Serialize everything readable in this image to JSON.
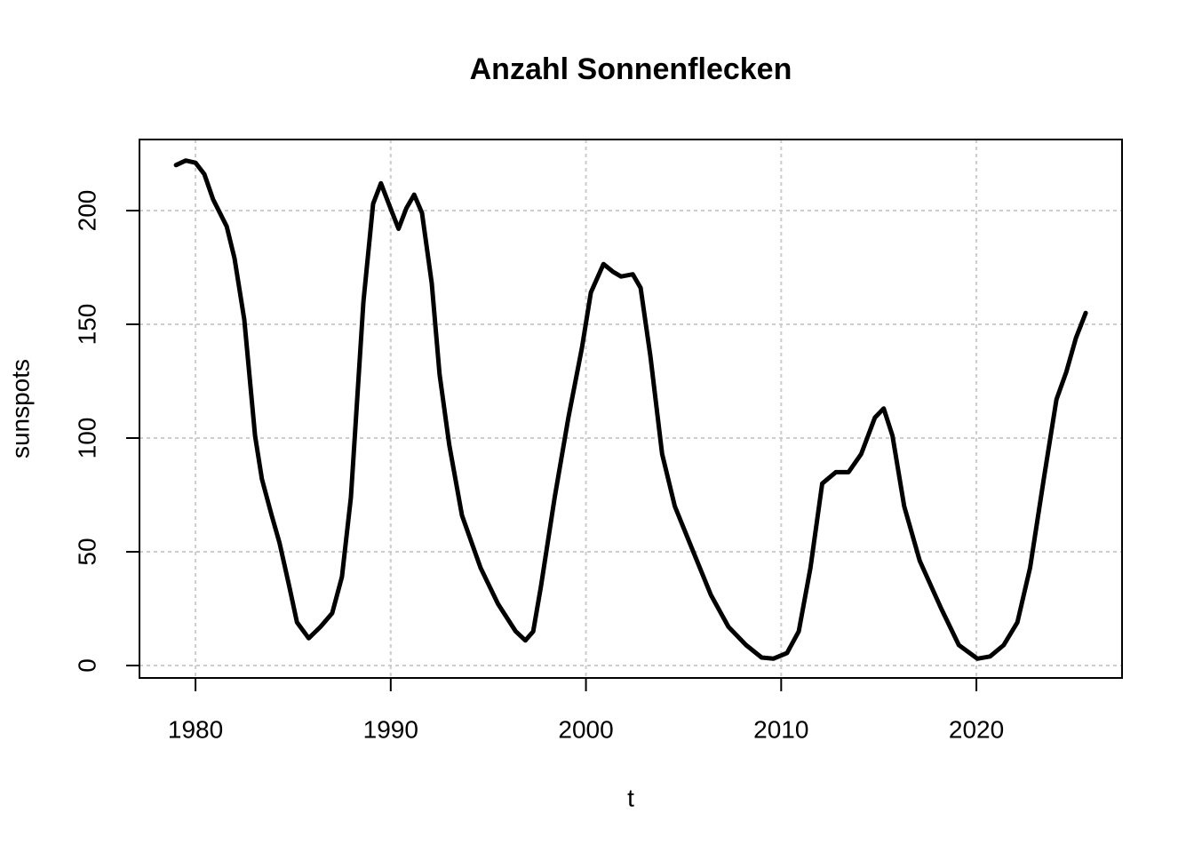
{
  "chart_data": {
    "type": "line",
    "title": "Anzahl Sonnenflecken",
    "x_label": "t",
    "y_label": "sunspots",
    "x": [
      1979.0,
      1979.5,
      1980.0,
      1980.45,
      1980.9,
      1981.6,
      1982.0,
      1982.5,
      1983.05,
      1983.4,
      1983.9,
      1984.3,
      1984.8,
      1985.2,
      1985.8,
      1986.4,
      1987.0,
      1987.5,
      1987.96,
      1988.6,
      1989.1,
      1989.5,
      1989.9,
      1990.4,
      1990.8,
      1991.2,
      1991.6,
      1992.1,
      1992.5,
      1993.0,
      1993.65,
      1994.6,
      1995.5,
      1996.4,
      1996.9,
      1997.3,
      1997.7,
      1998.4,
      1999.1,
      1999.8,
      2000.25,
      2000.9,
      2001.4,
      2001.8,
      2002.4,
      2002.8,
      2003.3,
      2003.9,
      2004.55,
      2005.5,
      2006.4,
      2007.3,
      2008.2,
      2009.0,
      2009.6,
      2010.3,
      2010.9,
      2011.5,
      2012.1,
      2012.8,
      2013.45,
      2014.1,
      2014.8,
      2015.25,
      2015.7,
      2016.3,
      2017.1,
      2018.2,
      2019.1,
      2020.05,
      2020.7,
      2021.4,
      2022.1,
      2022.75,
      2023.45,
      2024.1,
      2024.6,
      2025.1,
      2025.6
    ],
    "series": [
      {
        "name": "sunspots",
        "color": "#000000",
        "values": [
          220,
          222,
          221,
          216,
          205,
          193,
          179,
          152,
          101,
          82,
          66,
          54,
          35,
          19,
          12,
          17,
          23,
          39,
          74,
          160,
          203,
          212,
          203,
          192,
          201,
          207,
          199,
          168,
          128,
          97,
          66,
          43,
          27,
          15,
          11,
          15,
          35,
          74,
          109,
          140,
          164,
          176.5,
          173,
          171,
          172,
          166,
          136,
          93,
          70,
          50,
          31,
          17,
          9,
          3.5,
          3,
          5.5,
          15,
          43,
          80,
          85,
          85,
          93,
          109,
          113,
          101,
          70,
          46,
          25,
          9,
          3,
          4,
          9,
          19,
          43,
          82,
          117,
          129,
          144,
          155
        ]
      }
    ],
    "xlim": [
      1977.13,
      2027.46
    ],
    "xticks": [
      1980,
      1990,
      2000,
      2010,
      2020
    ],
    "ylim": [
      -5.47,
      231.25
    ],
    "yticks": [
      0,
      50,
      100,
      150,
      200
    ],
    "grid": true
  }
}
